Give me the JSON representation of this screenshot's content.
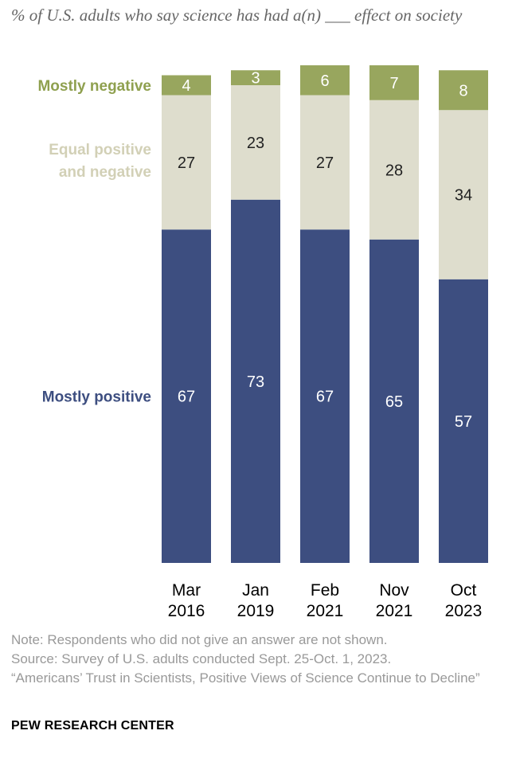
{
  "subtitle": "% of U.S. adults who say science has had a(n) ___ effect on society",
  "chart_data": {
    "type": "bar",
    "stacked": true,
    "categories": [
      {
        "month": "Mar",
        "year": "2016"
      },
      {
        "month": "Jan",
        "year": "2019"
      },
      {
        "month": "Feb",
        "year": "2021"
      },
      {
        "month": "Nov",
        "year": "2021"
      },
      {
        "month": "Oct",
        "year": "2023"
      }
    ],
    "series": [
      {
        "key": "positive",
        "name": "Mostly positive",
        "color": "#3d4e80",
        "label_color": "#ffffff",
        "values": [
          67,
          73,
          67,
          65,
          57
        ]
      },
      {
        "key": "equal",
        "name": "Equal positive and negative",
        "name_lines": [
          "Equal positive",
          "and negative"
        ],
        "color": "#deddcd",
        "label_color": "#222222",
        "values": [
          27,
          23,
          27,
          28,
          34
        ]
      },
      {
        "key": "negative",
        "name": "Mostly negative",
        "color": "#98a65e",
        "label_color": "#ffffff",
        "values": [
          4,
          3,
          6,
          7,
          8
        ]
      }
    ],
    "legend_colors": {
      "positive": "#3d4e80",
      "equal": "#d2d0b6",
      "negative": "#8fa04f"
    },
    "ylim": [
      0,
      100
    ],
    "xlabel": "",
    "ylabel": ""
  },
  "note": "Note: Respondents who did not give an answer are not shown.",
  "source": "Source: Survey of U.S. adults conducted Sept. 25-Oct. 1, 2023.",
  "report_title": "“Americans’ Trust in Scientists, Positive Views of Science Continue to Decline”",
  "brand": "PEW RESEARCH CENTER"
}
